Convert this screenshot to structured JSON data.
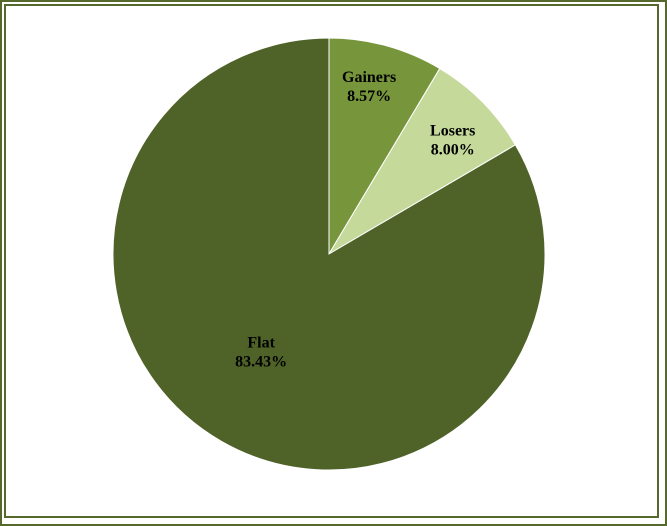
{
  "chart_data": {
    "type": "pie",
    "title": "",
    "categories": [
      "Gainers",
      "Losers",
      "Flat"
    ],
    "values": [
      8.57,
      8.0,
      83.43
    ],
    "value_labels": [
      "8.57%",
      "8.00%",
      "83.43%"
    ],
    "unit": "%",
    "colors": [
      "#77963c",
      "#c5d99b",
      "#4f6228"
    ],
    "start_angle_deg": 0,
    "direction": "clockwise",
    "legend": "none",
    "data_labels": "inside"
  },
  "frame": {
    "border_color": "#56692c"
  }
}
